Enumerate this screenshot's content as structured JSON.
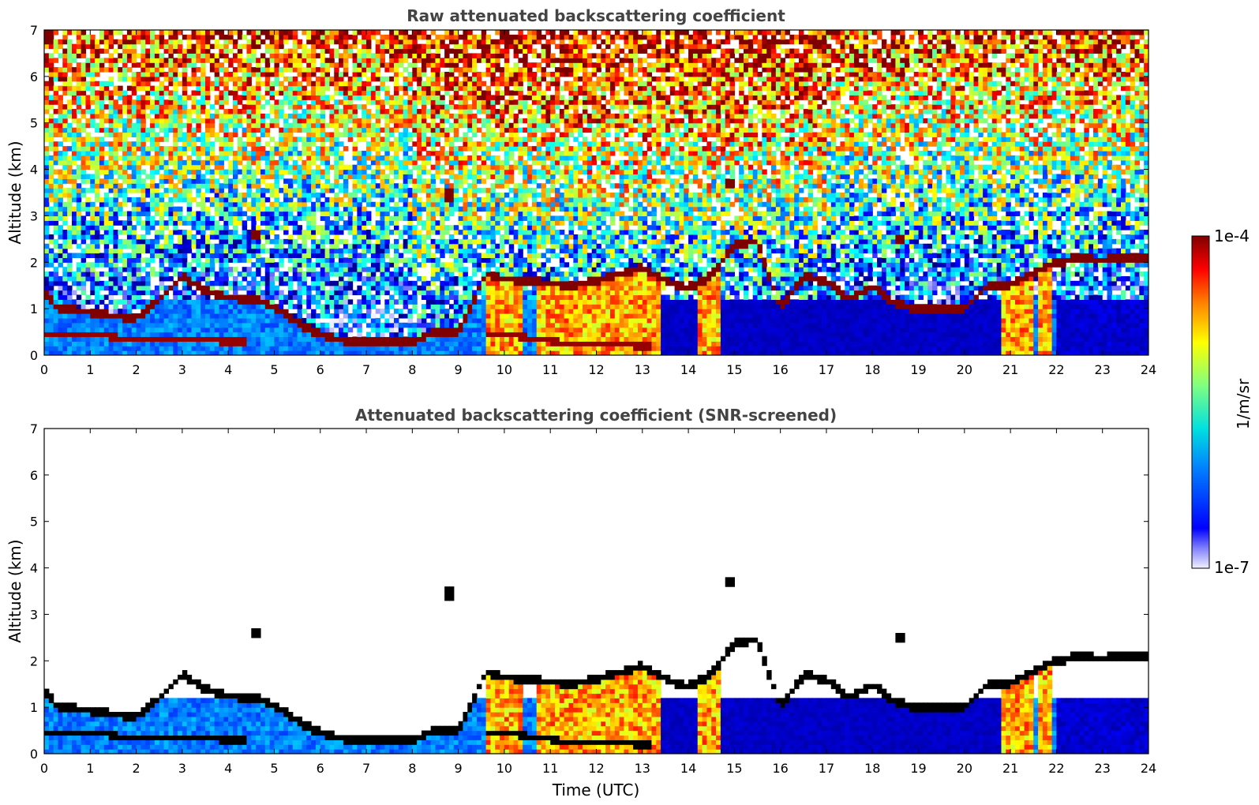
{
  "chart_data": [
    {
      "type": "heatmap",
      "title": "Raw attenuated backscattering coefficient",
      "xlabel": "",
      "ylabel": "Altitude (km)",
      "xlim": [
        0,
        24
      ],
      "ylim": [
        0,
        7
      ],
      "xticks": [
        "0",
        "1",
        "2",
        "3",
        "4",
        "5",
        "6",
        "7",
        "8",
        "9",
        "10",
        "11",
        "12",
        "13",
        "14",
        "15",
        "16",
        "17",
        "18",
        "19",
        "20",
        "21",
        "22",
        "23",
        "24"
      ],
      "yticks": [
        "0",
        "1",
        "2",
        "3",
        "4",
        "5",
        "6",
        "7"
      ],
      "colorscale": "jet, log10",
      "screened": false
    },
    {
      "type": "heatmap",
      "title": "Attenuated backscattering coefficient (SNR-screened)",
      "xlabel": "Time (UTC)",
      "ylabel": "Altitude (km)",
      "xlim": [
        0,
        24
      ],
      "ylim": [
        0,
        7
      ],
      "xticks": [
        "0",
        "1",
        "2",
        "3",
        "4",
        "5",
        "6",
        "7",
        "8",
        "9",
        "10",
        "11",
        "12",
        "13",
        "14",
        "15",
        "16",
        "17",
        "18",
        "19",
        "20",
        "21",
        "22",
        "23",
        "24"
      ],
      "yticks": [
        "0",
        "1",
        "2",
        "3",
        "4",
        "5",
        "6",
        "7"
      ],
      "colorscale": "jet, log10",
      "screened": true
    }
  ],
  "colorbar": {
    "label": "1/m/sr",
    "max_label": "1e-4",
    "min_label": "1e-7",
    "range": [
      1e-07,
      0.0001
    ],
    "scale": "log"
  },
  "features": {
    "cloud_layer_km": [
      [
        0,
        1.35
      ],
      [
        0.3,
        1.0
      ],
      [
        0.9,
        0.95
      ],
      [
        1.5,
        0.85
      ],
      [
        2.0,
        0.8
      ],
      [
        2.5,
        1.2
      ],
      [
        3.0,
        1.7
      ],
      [
        3.5,
        1.4
      ],
      [
        4.0,
        1.25
      ],
      [
        4.6,
        1.2
      ],
      [
        5.0,
        1.05
      ],
      [
        5.5,
        0.7
      ],
      [
        6.0,
        0.45
      ],
      [
        6.5,
        0.32
      ],
      [
        7.0,
        0.27
      ],
      [
        7.5,
        0.27
      ],
      [
        8.0,
        0.3
      ],
      [
        8.5,
        0.5
      ],
      [
        9.0,
        0.5
      ],
      [
        9.6,
        1.75
      ],
      [
        10.0,
        1.65
      ],
      [
        10.5,
        1.6
      ],
      [
        11.0,
        1.55
      ],
      [
        11.5,
        1.5
      ],
      [
        12.0,
        1.6
      ],
      [
        12.5,
        1.75
      ],
      [
        13.0,
        1.9
      ],
      [
        13.5,
        1.6
      ],
      [
        14.0,
        1.45
      ],
      [
        14.5,
        1.7
      ],
      [
        15.0,
        2.4
      ],
      [
        15.5,
        2.45
      ],
      [
        16.0,
        1.0
      ],
      [
        16.5,
        1.7
      ],
      [
        17.0,
        1.6
      ],
      [
        17.5,
        1.2
      ],
      [
        18.0,
        1.5
      ],
      [
        18.5,
        1.1
      ],
      [
        19.0,
        1.0
      ],
      [
        19.5,
        1.0
      ],
      [
        20.0,
        1.0
      ],
      [
        20.5,
        1.5
      ],
      [
        21.0,
        1.5
      ],
      [
        21.5,
        1.8
      ],
      [
        22.0,
        2.0
      ],
      [
        22.5,
        2.1
      ],
      [
        23.0,
        2.05
      ],
      [
        23.2,
        2.1
      ]
    ],
    "lower_layer_km": [
      [
        0,
        0.45
      ],
      [
        1.0,
        0.45
      ],
      [
        2.0,
        0.35
      ],
      [
        3.0,
        0.35
      ],
      [
        4.0,
        0.3
      ],
      [
        4.4,
        0.3
      ],
      [
        9.6,
        0.45
      ],
      [
        10.5,
        0.4
      ],
      [
        11.0,
        0.3
      ],
      [
        12.0,
        0.25
      ],
      [
        13.0,
        0.2
      ]
    ],
    "dense_columns_h": [
      [
        9.6,
        10.4
      ],
      [
        10.7,
        11.7
      ],
      [
        11.7,
        12.9
      ],
      [
        12.9,
        13.4
      ],
      [
        14.2,
        14.7
      ],
      [
        20.8,
        21.2
      ],
      [
        21.2,
        21.5
      ],
      [
        21.6,
        21.9
      ]
    ],
    "isolated_clouds": [
      [
        8.8,
        3.45
      ],
      [
        14.95,
        3.7
      ],
      [
        4.6,
        2.6
      ],
      [
        18.55,
        2.5
      ]
    ]
  }
}
